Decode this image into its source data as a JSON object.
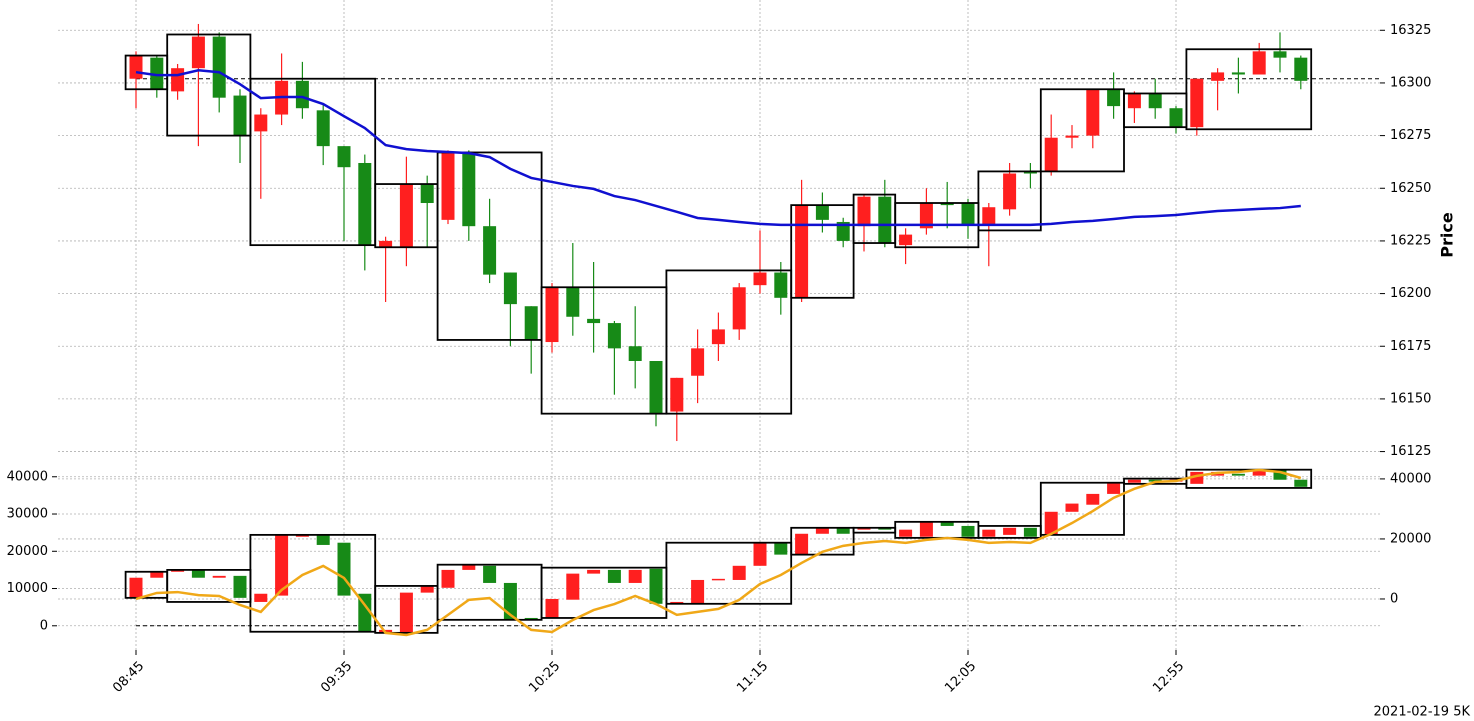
{
  "chart_data": [
    {
      "type": "candlestick",
      "x": [
        "08:45",
        "08:50",
        "08:55",
        "09:00",
        "09:05",
        "09:10",
        "09:15",
        "09:20",
        "09:25",
        "09:30",
        "09:35",
        "09:40",
        "09:45",
        "09:50",
        "09:55",
        "10:00",
        "10:05",
        "10:10",
        "10:15",
        "10:20",
        "10:25",
        "10:30",
        "10:35",
        "10:40",
        "10:45",
        "10:50",
        "10:55",
        "11:00",
        "11:05",
        "11:10",
        "11:15",
        "11:20",
        "11:25",
        "11:30",
        "11:35",
        "11:40",
        "11:45",
        "11:50",
        "11:55",
        "12:00",
        "12:05",
        "12:10",
        "12:15",
        "12:20",
        "12:25",
        "12:30",
        "12:35",
        "12:40",
        "12:45",
        "12:50",
        "12:55",
        "13:00",
        "13:05",
        "13:10",
        "13:15",
        "13:20",
        "13:25"
      ],
      "open": [
        16302,
        16312,
        16296,
        16307,
        16322,
        16294,
        16277,
        16285,
        16301,
        16287,
        16270,
        16262,
        16222,
        16222,
        16252,
        16235,
        16267,
        16232,
        16210,
        16194,
        16177,
        16203,
        16188,
        16186,
        16175,
        16168,
        16144,
        16161,
        16176,
        16183,
        16204,
        16210,
        16198,
        16242,
        16234,
        16232,
        16246,
        16223,
        16231,
        16243,
        16243,
        16233,
        16240,
        16258,
        16258,
        16274,
        16275,
        16297,
        16288,
        16295,
        16288,
        16279,
        16301,
        16305,
        16304,
        16315,
        16312
      ],
      "high": [
        16315,
        16313,
        16309,
        16328,
        16324,
        16297,
        16288,
        16314,
        16310,
        16290,
        16270,
        16266,
        16227,
        16265,
        16256,
        16268,
        16268,
        16245,
        16210,
        16194,
        16205,
        16224,
        16215,
        16187,
        16194,
        16168,
        16160,
        16183,
        16191,
        16205,
        16230,
        16215,
        16254,
        16248,
        16236,
        16247,
        16254,
        16231,
        16250,
        16253,
        16245,
        16243,
        16262,
        16262,
        16285,
        16280,
        16297,
        16305,
        16296,
        16302,
        16289,
        16302,
        16307,
        16312,
        16319,
        16324,
        16313
      ],
      "low": [
        16288,
        16293,
        16292,
        16270,
        16286,
        16262,
        16245,
        16280,
        16283,
        16261,
        16225,
        16211,
        16196,
        16213,
        16222,
        16233,
        16225,
        16205,
        16175,
        16162,
        16172,
        16180,
        16172,
        16152,
        16155,
        16137,
        16130,
        16148,
        16168,
        16178,
        16200,
        16190,
        16196,
        16229,
        16222,
        16220,
        16222,
        16214,
        16228,
        16231,
        16226,
        16213,
        16237,
        16250,
        16256,
        16269,
        16269,
        16283,
        16281,
        16283,
        16276,
        16275,
        16287,
        16295,
        16304,
        16305,
        16297
      ],
      "close": [
        16313,
        16297,
        16307,
        16322,
        16293,
        16275,
        16285,
        16301,
        16288,
        16270,
        16260,
        16223,
        16225,
        16252,
        16243,
        16267,
        16232,
        16209,
        16195,
        16178,
        16203,
        16189,
        16186,
        16174,
        16168,
        16143,
        16160,
        16174,
        16183,
        16203,
        16210,
        16198,
        16242,
        16235,
        16225,
        16246,
        16224,
        16228,
        16243,
        16242,
        16233,
        16241,
        16257,
        16257,
        16274,
        16275,
        16297,
        16289,
        16295,
        16288,
        16279,
        16302,
        16305,
        16304,
        16315,
        16312,
        16301
      ],
      "up_color": "#ff1f1f",
      "down_color": "#178a17",
      "lines": [
        {
          "color": "#1010d0",
          "values": [
            16305.1,
            16303.7,
            16303.7,
            16306.0,
            16305.1,
            16299.4,
            16292.8,
            16293.3,
            16293.3,
            16290.0,
            16284.2,
            16278.6,
            16270.5,
            16268.6,
            16267.7,
            16267.2,
            16266.7,
            16264.8,
            16259.2,
            16254.9,
            16253.0,
            16251.1,
            16249.7,
            16246.3,
            16244.4,
            16241.6,
            16238.8,
            16235.9,
            16235.0,
            16234.0,
            16233.1,
            16232.6,
            16232.6,
            16232.6,
            16232.6,
            16232.6,
            16232.6,
            16232.6,
            16232.6,
            16232.6,
            16232.6,
            16232.6,
            16232.6,
            16232.6,
            16233.1,
            16234.0,
            16234.5,
            16235.4,
            16236.4,
            16236.8,
            16237.3,
            16238.3,
            16239.2,
            16239.7,
            16240.2,
            16240.6,
            16241.6
          ]
        }
      ],
      "boxes": [
        {
          "from": "08:45",
          "to": "08:50",
          "high": 16313,
          "low": 16297
        },
        {
          "from": "08:55",
          "to": "09:10",
          "high": 16323,
          "low": 16275
        },
        {
          "from": "09:15",
          "to": "09:40",
          "high": 16302,
          "low": 16223
        },
        {
          "from": "09:45",
          "to": "09:55",
          "high": 16252,
          "low": 16222
        },
        {
          "from": "10:00",
          "to": "10:20",
          "high": 16267,
          "low": 16178
        },
        {
          "from": "10:25",
          "to": "10:50",
          "high": 16203,
          "low": 16143
        },
        {
          "from": "10:55",
          "to": "11:20",
          "high": 16211,
          "low": 16143
        },
        {
          "from": "11:25",
          "to": "11:35",
          "high": 16242,
          "low": 16198
        },
        {
          "from": "11:40",
          "to": "11:45",
          "high": 16247,
          "low": 16224
        },
        {
          "from": "11:50",
          "to": "12:05",
          "high": 16243,
          "low": 16222
        },
        {
          "from": "12:10",
          "to": "12:20",
          "high": 16258,
          "low": 16230
        },
        {
          "from": "12:25",
          "to": "12:40",
          "high": 16297,
          "low": 16258
        },
        {
          "from": "12:45",
          "to": "12:55",
          "high": 16295,
          "low": 16279
        },
        {
          "from": "13:00",
          "to": "13:25",
          "high": 16316,
          "low": 16278
        }
      ],
      "ref_line": 16302,
      "ylim": [
        16121,
        16337
      ],
      "yticks": [
        16125,
        16150,
        16175,
        16200,
        16225,
        16250,
        16275,
        16300,
        16325
      ],
      "ylabel": "Price",
      "grid": true,
      "xticks": [
        "08:45",
        "09:35",
        "10:25",
        "11:15",
        "12:05",
        "12:55"
      ],
      "caption": "2021-02-19 5K"
    },
    {
      "type": "candlestick",
      "open": [
        7500,
        12900,
        14500,
        15000,
        12900,
        13400,
        6400,
        8100,
        23900,
        24400,
        22300,
        8600,
        -1900,
        -1900,
        8900,
        10200,
        15000,
        16100,
        11500,
        2100,
        2100,
        7000,
        14000,
        15000,
        11500,
        15300,
        5900,
        6000,
        12300,
        12300,
        16100,
        22300,
        19100,
        24700,
        26300,
        25800,
        26300,
        23900,
        23900,
        27900,
        26800,
        23900,
        24400,
        26300,
        24400,
        30600,
        32500,
        35400,
        38400,
        39200,
        38700,
        38100,
        40300,
        40800,
        40300,
        41900,
        39200
      ],
      "close": [
        12900,
        14500,
        15000,
        12900,
        13400,
        7500,
        8600,
        24400,
        24400,
        21700,
        8100,
        -1600,
        -1100,
        8900,
        10700,
        15000,
        16400,
        11500,
        1600,
        1600,
        7200,
        14000,
        15000,
        11500,
        15000,
        5900,
        6400,
        12300,
        12600,
        16100,
        22300,
        19100,
        24700,
        26300,
        24700,
        26300,
        25800,
        25800,
        27900,
        26800,
        23900,
        25800,
        26300,
        23900,
        30600,
        32800,
        35400,
        38400,
        39200,
        38700,
        39200,
        41300,
        41300,
        40300,
        41900,
        39200,
        37300
      ],
      "up_color": "#ff1f1f",
      "down_color": "#178a17",
      "lines": [
        {
          "color": "#f0a818",
          "axis": "y2",
          "values": [
            0,
            2000,
            2300,
            1300,
            1000,
            -2000,
            -4300,
            3000,
            8000,
            11000,
            7000,
            -2000,
            -11300,
            -12000,
            -10300,
            -5300,
            -300,
            300,
            -5300,
            -10300,
            -11000,
            -7000,
            -3700,
            -1700,
            1000,
            -1700,
            -5300,
            -4300,
            -3300,
            -300,
            5000,
            8000,
            12000,
            15700,
            17700,
            18700,
            19300,
            18700,
            19700,
            20300,
            19700,
            18700,
            19000,
            18700,
            21700,
            25300,
            29300,
            33700,
            36700,
            39000,
            39300,
            41000,
            42000,
            42300,
            43000,
            42300,
            40300
          ]
        }
      ],
      "boxes": [
        {
          "from": "08:45",
          "to": "08:50",
          "high": 14500,
          "low": 7500
        },
        {
          "from": "08:55",
          "to": "09:10",
          "high": 15000,
          "low": 6400
        },
        {
          "from": "09:15",
          "to": "09:40",
          "high": 24400,
          "low": -1600
        },
        {
          "from": "09:45",
          "to": "09:55",
          "high": 10700,
          "low": -1900
        },
        {
          "from": "10:00",
          "to": "10:20",
          "high": 16400,
          "low": 1600
        },
        {
          "from": "10:25",
          "to": "10:50",
          "high": 15600,
          "low": 2100
        },
        {
          "from": "10:55",
          "to": "11:20",
          "high": 22300,
          "low": 5900
        },
        {
          "from": "11:25",
          "to": "11:35",
          "high": 26300,
          "low": 19100
        },
        {
          "from": "11:40",
          "to": "11:45",
          "high": 26300,
          "low": 25000
        },
        {
          "from": "11:50",
          "to": "12:05",
          "high": 27900,
          "low": 23600
        },
        {
          "from": "12:10",
          "to": "12:20",
          "high": 26800,
          "low": 23600
        },
        {
          "from": "12:25",
          "to": "12:40",
          "high": 38400,
          "low": 24400
        },
        {
          "from": "12:45",
          "to": "12:55",
          "high": 39500,
          "low": 38100
        },
        {
          "from": "13:00",
          "to": "13:25",
          "high": 41900,
          "low": 37000
        }
      ],
      "ref_line": 0,
      "ylim": [
        -6500,
        44500
      ],
      "yticks": [
        0,
        10000,
        20000,
        30000,
        40000
      ],
      "y2lim": [
        -17000,
        46300
      ],
      "y2ticks": [
        0,
        20000,
        40000
      ],
      "grid": true
    }
  ]
}
